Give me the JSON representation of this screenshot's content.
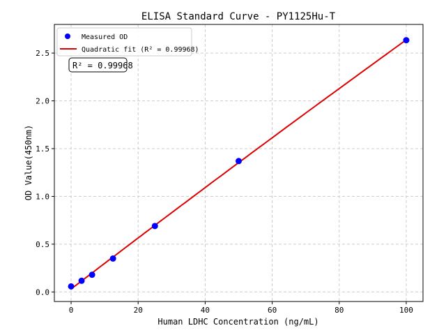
{
  "chart_data": {
    "type": "scatter",
    "title": "ELISA Standard Curve - PY1125Hu-T",
    "xlabel": "Human LDHC Concentration (ng/mL)",
    "ylabel": "OD Value(450nm)",
    "xlim": [
      -5,
      105
    ],
    "ylim": [
      -0.1,
      2.8
    ],
    "xticks": [
      0,
      20,
      40,
      60,
      80,
      100
    ],
    "yticks": [
      0.0,
      0.5,
      1.0,
      1.5,
      2.0,
      2.5
    ],
    "grid": true,
    "legend_placement": "top-left",
    "series": [
      {
        "name": "Measured OD",
        "kind": "points",
        "color": "#0000ff",
        "x": [
          0,
          3.125,
          6.25,
          12.5,
          25,
          50,
          100
        ],
        "y": [
          0.058,
          0.117,
          0.18,
          0.35,
          0.69,
          1.37,
          2.635
        ]
      },
      {
        "name": "Quadratic fit (R² = 0.99968)",
        "kind": "fit",
        "color": "#dd0000"
      }
    ],
    "annotation": "R² = 0.99968"
  }
}
